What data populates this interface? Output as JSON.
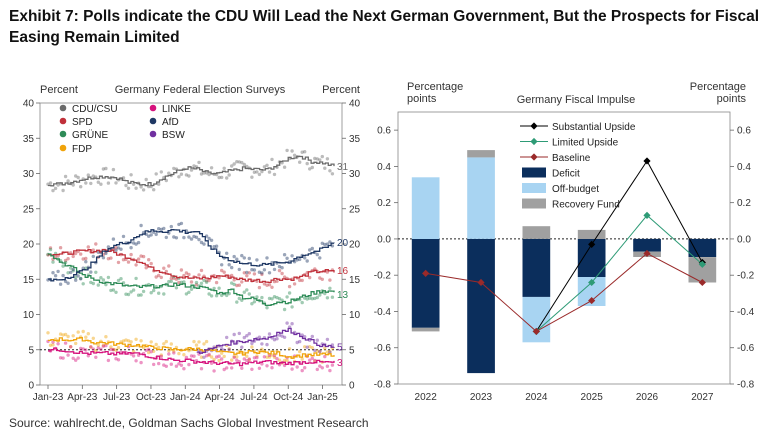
{
  "title": "Exhibit 7: Polls indicate the CDU Will Lead the Next German Government, But the Prospects for Fiscal Easing Remain Limited",
  "source": "Source: wahlrecht.de, Goldman Sachs Global Investment Research",
  "chart_data": [
    {
      "type": "scatter",
      "title": "Germany Federal Election Surveys",
      "ylabel": "Percent",
      "ylabel_right": "Percent",
      "ylim": [
        0,
        40
      ],
      "yticks": [
        "0",
        "5",
        "10",
        "15",
        "20",
        "25",
        "30",
        "35",
        "40"
      ],
      "xticks": [
        "Jan-23",
        "Apr-23",
        "Jul-23",
        "Oct-23",
        "Jan-24",
        "Apr-24",
        "Jul-24",
        "Oct-24",
        "Jan-25"
      ],
      "xlim_months": [
        0,
        25
      ],
      "reference_line": 5,
      "legend_position": "top-left",
      "series": [
        {
          "name": "CDU/CSU",
          "color": "#6b6b6b",
          "end_label": "31",
          "values": [
            28.5,
            28.5,
            28.8,
            29.2,
            29.5,
            29.6,
            29.4,
            28.7,
            28.5,
            28.5,
            29.4,
            30.1,
            30.8,
            30.6,
            30.0,
            30.0,
            30.4,
            30.7,
            30.6,
            30.5,
            31.2,
            32.2,
            32.5,
            31.7,
            31.5,
            31.0
          ]
        },
        {
          "name": "SPD",
          "color": "#c0303a",
          "end_label": "16",
          "values": [
            18.7,
            18.5,
            18.8,
            19.0,
            19.0,
            19.2,
            18.6,
            18.1,
            17.5,
            16.5,
            16.1,
            15.5,
            15.2,
            15.1,
            15.2,
            15.5,
            15.3,
            14.9,
            14.9,
            14.7,
            15.1,
            15.0,
            15.3,
            16.0,
            16.2,
            16.0
          ]
        },
        {
          "name": "GRÜNE",
          "color": "#2e8b57",
          "end_label": "13",
          "values": [
            18.8,
            17.5,
            16.7,
            15.6,
            15.0,
            14.5,
            14.3,
            14.0,
            13.9,
            14.0,
            14.0,
            14.3,
            14.1,
            13.9,
            13.6,
            13.0,
            13.5,
            12.4,
            12.2,
            11.4,
            11.8,
            11.8,
            12.4,
            13.0,
            13.4,
            13.2
          ]
        },
        {
          "name": "FDP",
          "color": "#f0a30a",
          "end_label": "",
          "values": [
            6.4,
            6.5,
            6.4,
            6.5,
            6.0,
            6.0,
            5.8,
            5.7,
            5.6,
            5.3,
            5.2,
            5.0,
            5.1,
            5.1,
            5.0,
            4.6,
            4.5,
            4.5,
            4.8,
            4.6,
            4.5,
            4.0,
            4.2,
            4.3,
            4.3,
            4.2
          ]
        },
        {
          "name": "LINKE",
          "color": "#d6127d",
          "end_label": "3",
          "values": [
            5.0,
            5.0,
            4.8,
            4.5,
            4.5,
            4.5,
            4.4,
            4.5,
            4.4,
            4.0,
            3.8,
            3.5,
            3.5,
            3.3,
            3.2,
            3.1,
            3.0,
            3.0,
            3.2,
            3.3,
            3.1,
            3.1,
            3.2,
            3.3,
            3.2,
            3.2
          ]
        },
        {
          "name": "AfD",
          "color": "#1f3864",
          "end_label": "20",
          "values": [
            14.8,
            15.0,
            15.5,
            16.2,
            17.5,
            19.2,
            19.9,
            20.4,
            21.4,
            21.9,
            21.8,
            22.0,
            21.7,
            21.8,
            19.8,
            18.3,
            17.7,
            17.2,
            17.1,
            17.0,
            17.3,
            17.5,
            18.3,
            18.8,
            19.3,
            20.2
          ]
        },
        {
          "name": "BSW",
          "color": "#7030a0",
          "end_label": "5",
          "values": [
            null,
            null,
            null,
            null,
            null,
            null,
            null,
            null,
            null,
            null,
            null,
            null,
            null,
            4.6,
            5.0,
            5.6,
            6.0,
            6.2,
            6.5,
            6.6,
            7.4,
            7.8,
            7.0,
            6.2,
            5.5,
            5.4
          ]
        }
      ]
    },
    {
      "type": "bar",
      "title": "Germany Fiscal Impulse",
      "ylabel": "Percentage points",
      "ylabel_right": "Percentage points",
      "ylim": [
        -0.8,
        0.7
      ],
      "yticks": [
        "-0.8",
        "-0.6",
        "-0.4",
        "-0.2",
        "0.0",
        "0.2",
        "0.4",
        "0.6"
      ],
      "categories": [
        "2022",
        "2023",
        "2024",
        "2025",
        "2026",
        "2027"
      ],
      "legend_position": "top-left",
      "bar_series": [
        {
          "name": "Deficit",
          "color": "#0b2e5c",
          "values": [
            -0.49,
            -0.74,
            -0.32,
            -0.21,
            -0.07,
            -0.1
          ]
        },
        {
          "name": "Off-budget",
          "color": "#a8d4f2",
          "values": [
            0.34,
            0.45,
            -0.25,
            -0.16,
            0.0,
            0.0
          ]
        },
        {
          "name": "Recovery Fund",
          "color": "#a0a0a0",
          "values": [
            -0.02,
            0.04,
            0.07,
            0.05,
            -0.03,
            -0.14
          ]
        }
      ],
      "line_series": [
        {
          "name": "Substantial Upside",
          "color": "#000000",
          "marker": "diamond",
          "values": [
            null,
            null,
            -0.51,
            -0.03,
            0.43,
            -0.13
          ]
        },
        {
          "name": "Limited Upside",
          "color": "#2e9b76",
          "marker": "diamond",
          "values": [
            null,
            null,
            -0.51,
            -0.24,
            0.13,
            -0.14
          ]
        },
        {
          "name": "Baseline",
          "color": "#9a2a2a",
          "marker": "diamond",
          "values": [
            -0.19,
            -0.24,
            -0.51,
            -0.34,
            -0.08,
            -0.24
          ]
        }
      ]
    }
  ]
}
